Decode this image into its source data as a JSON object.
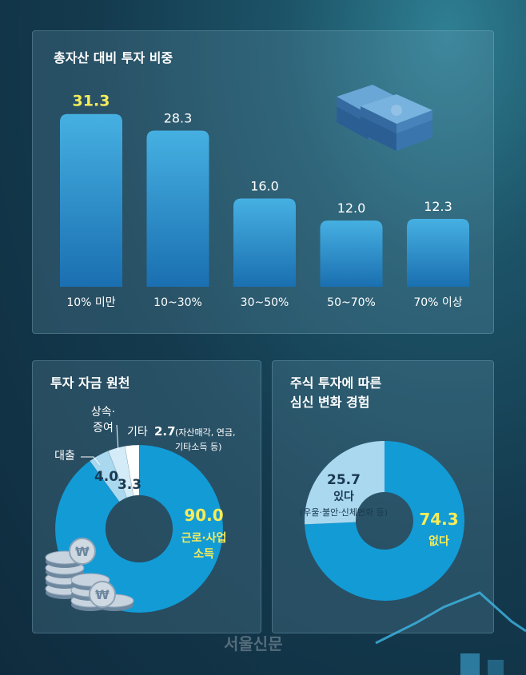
{
  "colors": {
    "bar_top": "#46b0e2",
    "bar_bottom": "#1a6fb0",
    "highlight": "#f6ec5a",
    "donut_main": "#139bd6",
    "donut_light": "#a9d8ef",
    "donut_white": "#ffffff"
  },
  "watermark": "서울신문",
  "chart_data": [
    {
      "type": "bar",
      "title": "총자산 대비 투자 비중",
      "categories": [
        "10% 미만",
        "10~30%",
        "30~50%",
        "50~70%",
        "70% 이상"
      ],
      "values": [
        31.3,
        28.3,
        16.0,
        12.0,
        12.3
      ],
      "value_labels": [
        "31.3",
        "28.3",
        "16.0",
        "12.0",
        "12.3"
      ],
      "highlight_index": 0,
      "ylim": [
        0,
        33
      ],
      "grid": false
    },
    {
      "type": "pie",
      "title": "투자 자금 원천",
      "slices": [
        {
          "label": "근로·사업 소득",
          "label_lines": [
            "근로·사업",
            "소득"
          ],
          "value": 90.0,
          "value_label": "90.0",
          "color": "#139bd6"
        },
        {
          "label": "대출",
          "value": 4.0,
          "value_label": "4.0",
          "color": "#a9d8ef"
        },
        {
          "label": "상속·증여",
          "label_lines": [
            "상속·",
            "증여"
          ],
          "value": 3.3,
          "value_label": "3.3",
          "color": "#d4ecf8"
        },
        {
          "label": "기타",
          "value": 2.7,
          "value_label": "2.7",
          "note_lines": [
            "(자산매각, 연금,",
            "기타소득 등)"
          ],
          "color": "#ffffff"
        }
      ]
    },
    {
      "type": "pie",
      "title": "주식 투자에 따른\n심신 변화 경험",
      "slices": [
        {
          "label": "없다",
          "value": 74.3,
          "value_label": "74.3",
          "color": "#139bd6"
        },
        {
          "label": "있다",
          "value": 25.7,
          "value_label": "25.7",
          "note": "(우울·불안·신체변화 등)",
          "color": "#a9d8ef"
        }
      ]
    }
  ]
}
